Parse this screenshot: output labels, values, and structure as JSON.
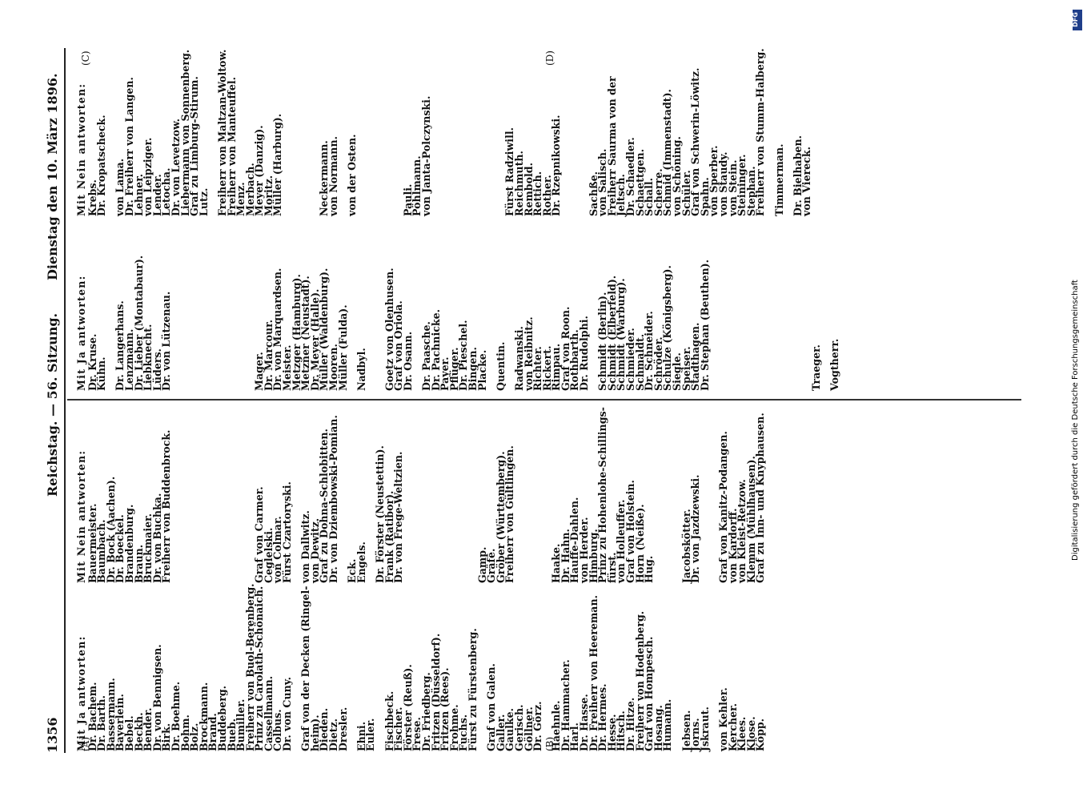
{
  "header": {
    "page_number": "1356",
    "center": "Reichstag. — 56. Sitzung.",
    "right": "Dienstag den 10. März 1896."
  },
  "markers": {
    "A": "(A)",
    "B": "(B)",
    "C": "(C)",
    "D": "(D)"
  },
  "left_ja": {
    "heading": "Mit Ja antworten:",
    "names": [
      "Dr. Bachem.",
      "Dr. Barth.",
      "Bassermann.",
      "Bayerlein.",
      "Bebel.",
      "Beckh.",
      "Bender.",
      "Dr. von Bennigsen.",
      "Birk.",
      "Dr. Boehme.",
      "Bohm.",
      "Bolz.",
      "Brockmann.",
      "Brand.",
      "Buddeberg.",
      "Bueb.",
      "Bumiller.",
      "Freiherr von Buol-Berenberg.",
      "Prinz zu Carolath-Schönaich.",
      "Cassellmann.",
      "Colbus.",
      "Dr. von Cuny.",
      "",
      "Graf von der Decken (Ringel-",
      "heim).",
      "Dieden.",
      "Dietz.",
      "Dresler.",
      "",
      "Ehni.",
      "Euler.",
      "",
      "Fischbeck.",
      "Fischer.",
      "Förster (Reuß).",
      "Frese.",
      "Dr. Friedberg.",
      "Fritzen (Düsseldorf).",
      "Fritzen (Rees).",
      "Frohme.",
      "Fuchs.",
      "Fürst zu Fürstenberg.",
      "",
      "Graf von Galen.",
      "Galler.",
      "Gaulke.",
      "Gerisch.",
      "Göllner.",
      "Dr. Görz.",
      "",
      "Haehnle.",
      "Dr. Hammacher.",
      "Harl.",
      "Dr. Hasse.",
      "Dr. Freiherr von Heereman.",
      "Dr. Hermes.",
      "Hesse.",
      "Hitsch.",
      "Dr. Hitze.",
      "Freiherr von Hodenberg.",
      "Graf von Hompesch.",
      "Hosang.",
      "Humann.",
      "",
      "Jebsen.",
      "Jorns.",
      "Jskraut.",
      "",
      "von Kehler.",
      "Kercher.",
      "Klees.",
      "Klose.",
      "Köpp."
    ]
  },
  "left_nein": {
    "heading": "Mit Nein antworten:",
    "names": [
      "Bauermeister.",
      "Baumbach.",
      "Dr. Bock (Aachen).",
      "Dr. Boeckel.",
      "Brandenburg.",
      "Braun.",
      "Bruckmaier.",
      "Dr. von Buchka.",
      "Freiherr von Buddenbrock.",
      "",
      "",
      "",
      "",
      "",
      "",
      "",
      "",
      "",
      "Graf von Carmer.",
      "Ceglelski.",
      "von Colmar.",
      "Fürst Czartoryski.",
      "",
      "von Dallwitz.",
      "von Dewitz.",
      "Graf zu Dohna-Schlobitten.",
      "Dr. von Dziembowski-Pomian.",
      "",
      "Eck.",
      "Engels.",
      "",
      "Dr. Förster (Neustettin).",
      "Frank (Ratibor).",
      "Dr. von Frege-Weltzien.",
      "",
      "",
      "",
      "",
      "",
      "",
      "",
      "",
      "Gamp.",
      "Gräfe.",
      "Gröber (Württemberg).",
      "Freiherr von Gültlingen.",
      "",
      "",
      "",
      "",
      "Haake.",
      "Dr. Hahn.",
      "Hauffe-Dahlen.",
      "von Herder.",
      "Himburg.",
      "Prinz zu Hohenlohe-Schillings-",
      "fürst.",
      "von Holleuffer.",
      "Graf von Holstein.",
      "Horn (Neiße).",
      "Hug.",
      "",
      "",
      "",
      "Jacobskötter.",
      "Dr. von Jazdzewski.",
      "",
      "",
      "Graf von Kanitz-Podangen.",
      "von Kardorff.",
      "von Kleist-Retzow.",
      "Klemm (Mühlhausen).",
      "Graf zu Inn- und Knyphausen."
    ]
  },
  "right_ja": {
    "heading": "Mit Ja antworten:",
    "names": [
      "Dr. Kruse.",
      "Kühn.",
      "",
      "Dr. Langerhans.",
      "Lenzmann.",
      "Dr. Lieber (Montabaur).",
      "Liebknecht.",
      "Lüders.",
      "Dr. von Lützenau.",
      "",
      "",
      "",
      "",
      "",
      "",
      "",
      "",
      "",
      "Mager.",
      "Dr. Marcour.",
      "Dr. von Marquardsen.",
      "Meister.",
      "Metzger (Hamburg).",
      "Metzner (Neustadt).",
      "Dr. Meyer (Halle).",
      "Müller (Waldenburg).",
      "Mooren.",
      "Müller (Fulda).",
      "",
      "Nadbyl.",
      "",
      "",
      "Goetz von Olenhusen.",
      "Graf von Oriola.",
      "Dr. Osann.",
      "",
      "Dr. Paasche.",
      "Dr. Pachnicke.",
      "Payer.",
      "Pflüger.",
      "Dr. Pieschel.",
      "Bingen.",
      "Placke.",
      "",
      "Quentin.",
      "",
      "Radwanski.",
      "von Reibnitz.",
      "Richter.",
      "Rickert.",
      "Rimpau.",
      "Graf von Roon.",
      "Rothbarth.",
      "Dr. Rudolphi.",
      "",
      "Schmidt (Berlin).",
      "Schmidt (Elberfeld).",
      "Schmidt (Warburg).",
      "Schmieder.",
      "Schmaldt.",
      "Dr. Schneider.",
      "Schröder.",
      "Schulze (Königsberg).",
      "Siegle.",
      "Speiser.",
      "Stadthagen.",
      "Dr. Stephan (Beuthen).",
      "",
      "",
      "",
      "",
      "",
      "",
      "",
      "",
      "",
      "",
      "",
      "Traeger.",
      "",
      "Vogtherr."
    ]
  },
  "right_nein": {
    "heading": "Mit Nein antworten:",
    "names": [
      "Krebs.",
      "Dr. Kropatscheck.",
      "",
      "von Lama.",
      "Dr. Freiherr von Langen.",
      "Lehner.",
      "von Leipziger.",
      "Lender.",
      "Letocha.",
      "Dr. von Levetzow.",
      "Liebermann von Sonnenberg.",
      "Graf zu Limburg-Stirum.",
      "Lutz.",
      "",
      "Freiherr von Maltzan-Woltow.",
      "Freiherr von Manteuffel.",
      "Menz.",
      "Merbach.",
      "Meyer (Danzig).",
      "Moritz.",
      "Müller (Harburg).",
      "",
      "",
      "",
      "",
      "Neckermann.",
      "von Normann.",
      "",
      "von der Osten.",
      "",
      "",
      "",
      "",
      "",
      "Pauli.",
      "Pöhlmann.",
      "von Janta-Polczynski.",
      "",
      "",
      "",
      "",
      "",
      "",
      "",
      "",
      "Fürst Radziwill.",
      "Reichmuth.",
      "Rembold.",
      "Rettich.",
      "Rother.",
      "Dr. Rzepnikowski.",
      "",
      "",
      "",
      "Sachße.",
      "von Salisch.",
      "Freiherr Saurma von der",
      "Jeltsch.",
      "Dr. Schaedler.",
      "Schaettgen.",
      "Schall.",
      "Scherre.",
      "Schmid (Immenstadt).",
      "von Schöning.",
      "Schüler.",
      "Graf von Schwerin-Löwitz.",
      "Spahn.",
      "von Sperber.",
      "von Staudy.",
      "von Stein.",
      "Steininger.",
      "Stephan.",
      "Freiherr von Stumm-Halberg.",
      "",
      "Timmerman.",
      "",
      "Dr. Bielhaben.",
      "von Viereck."
    ]
  },
  "sidebar": {
    "credit": "Digitalisierung gefördert durch die Deutsche Forschungsgemeinschaft",
    "logo": "DFG"
  }
}
